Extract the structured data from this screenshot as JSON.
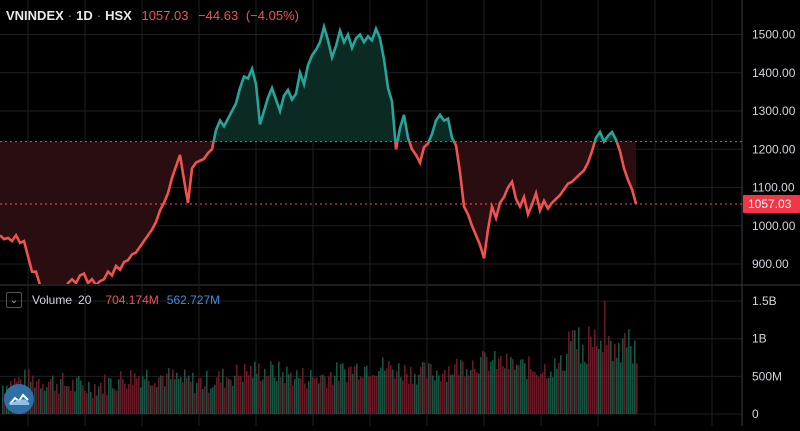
{
  "legend": {
    "symbol": "VNINDEX",
    "interval": "1D",
    "exchange": "HSX",
    "last": "1057.03",
    "change": "−44.63",
    "change_pct": "(−4.05%)"
  },
  "volume_legend": {
    "label": "Volume",
    "length": "20",
    "value": "704.174M",
    "ma": "562.727M"
  },
  "icons": {
    "logo": "tradingview-cloud-icon",
    "collapse": "chevron-down-icon"
  },
  "colors": {
    "up": "#26a69a",
    "down": "#ef5350",
    "price_label": "#f23645",
    "ma": "#3f8ede",
    "grid": "#1d1f25"
  },
  "chart_data": {
    "type": "line",
    "base_value": 1220,
    "last_price_label": "1057.03",
    "price_axis": {
      "ticks": [
        900,
        1000,
        1100,
        1200,
        1300,
        1400,
        1500
      ],
      "labels": [
        "900.00",
        "1000.00",
        "1100.00",
        "1200.00",
        "1300.00",
        "1400.00",
        "1500.00"
      ],
      "ylim": [
        850,
        1540
      ]
    },
    "price": [
      [
        0,
        975
      ],
      [
        4,
        965
      ],
      [
        8,
        968
      ],
      [
        12,
        960
      ],
      [
        16,
        975
      ],
      [
        20,
        955
      ],
      [
        24,
        960
      ],
      [
        28,
        920
      ],
      [
        32,
        880
      ],
      [
        36,
        880
      ],
      [
        40,
        845
      ],
      [
        44,
        830
      ],
      [
        48,
        820
      ],
      [
        52,
        815
      ],
      [
        56,
        825
      ],
      [
        60,
        805
      ],
      [
        64,
        810
      ],
      [
        68,
        850
      ],
      [
        72,
        860
      ],
      [
        76,
        850
      ],
      [
        80,
        870
      ],
      [
        84,
        875
      ],
      [
        88,
        850
      ],
      [
        92,
        860
      ],
      [
        96,
        845
      ],
      [
        100,
        855
      ],
      [
        104,
        860
      ],
      [
        108,
        880
      ],
      [
        112,
        870
      ],
      [
        116,
        895
      ],
      [
        120,
        885
      ],
      [
        124,
        905
      ],
      [
        128,
        910
      ],
      [
        132,
        925
      ],
      [
        136,
        930
      ],
      [
        140,
        945
      ],
      [
        144,
        960
      ],
      [
        148,
        975
      ],
      [
        152,
        990
      ],
      [
        156,
        1010
      ],
      [
        160,
        1040
      ],
      [
        164,
        1060
      ],
      [
        168,
        1085
      ],
      [
        172,
        1125
      ],
      [
        176,
        1155
      ],
      [
        180,
        1185
      ],
      [
        184,
        1120
      ],
      [
        188,
        1060
      ],
      [
        192,
        1150
      ],
      [
        196,
        1165
      ],
      [
        200,
        1170
      ],
      [
        204,
        1175
      ],
      [
        208,
        1190
      ],
      [
        212,
        1200
      ],
      [
        216,
        1250
      ],
      [
        220,
        1275
      ],
      [
        224,
        1260
      ],
      [
        228,
        1280
      ],
      [
        232,
        1300
      ],
      [
        236,
        1320
      ],
      [
        240,
        1360
      ],
      [
        244,
        1390
      ],
      [
        248,
        1385
      ],
      [
        252,
        1410
      ],
      [
        256,
        1370
      ],
      [
        260,
        1265
      ],
      [
        264,
        1300
      ],
      [
        268,
        1335
      ],
      [
        272,
        1360
      ],
      [
        276,
        1330
      ],
      [
        280,
        1300
      ],
      [
        284,
        1340
      ],
      [
        288,
        1355
      ],
      [
        292,
        1330
      ],
      [
        296,
        1345
      ],
      [
        300,
        1400
      ],
      [
        304,
        1370
      ],
      [
        308,
        1420
      ],
      [
        312,
        1445
      ],
      [
        316,
        1460
      ],
      [
        320,
        1480
      ],
      [
        324,
        1520
      ],
      [
        328,
        1485
      ],
      [
        332,
        1440
      ],
      [
        336,
        1470
      ],
      [
        340,
        1510
      ],
      [
        344,
        1480
      ],
      [
        348,
        1500
      ],
      [
        352,
        1465
      ],
      [
        356,
        1490
      ],
      [
        360,
        1500
      ],
      [
        364,
        1480
      ],
      [
        368,
        1495
      ],
      [
        372,
        1485
      ],
      [
        376,
        1515
      ],
      [
        380,
        1490
      ],
      [
        384,
        1435
      ],
      [
        388,
        1360
      ],
      [
        392,
        1325
      ],
      [
        396,
        1200
      ],
      [
        400,
        1255
      ],
      [
        404,
        1290
      ],
      [
        408,
        1230
      ],
      [
        412,
        1200
      ],
      [
        416,
        1185
      ],
      [
        420,
        1165
      ],
      [
        424,
        1205
      ],
      [
        428,
        1215
      ],
      [
        432,
        1240
      ],
      [
        436,
        1275
      ],
      [
        440,
        1290
      ],
      [
        444,
        1275
      ],
      [
        448,
        1280
      ],
      [
        452,
        1230
      ],
      [
        456,
        1210
      ],
      [
        460,
        1140
      ],
      [
        464,
        1050
      ],
      [
        468,
        1030
      ],
      [
        472,
        1000
      ],
      [
        476,
        975
      ],
      [
        480,
        950
      ],
      [
        484,
        915
      ],
      [
        488,
        990
      ],
      [
        492,
        1050
      ],
      [
        496,
        1020
      ],
      [
        500,
        1060
      ],
      [
        504,
        1075
      ],
      [
        508,
        1100
      ],
      [
        512,
        1115
      ],
      [
        516,
        1070
      ],
      [
        520,
        1050
      ],
      [
        524,
        1075
      ],
      [
        528,
        1030
      ],
      [
        532,
        1055
      ],
      [
        536,
        1085
      ],
      [
        540,
        1040
      ],
      [
        544,
        1065
      ],
      [
        548,
        1045
      ],
      [
        552,
        1060
      ],
      [
        556,
        1070
      ],
      [
        560,
        1080
      ],
      [
        564,
        1095
      ],
      [
        568,
        1110
      ],
      [
        572,
        1115
      ],
      [
        576,
        1125
      ],
      [
        580,
        1135
      ],
      [
        584,
        1145
      ],
      [
        588,
        1165
      ],
      [
        592,
        1195
      ],
      [
        596,
        1230
      ],
      [
        600,
        1245
      ],
      [
        604,
        1220
      ],
      [
        608,
        1235
      ],
      [
        612,
        1245
      ],
      [
        616,
        1225
      ],
      [
        620,
        1195
      ],
      [
        624,
        1150
      ],
      [
        628,
        1120
      ],
      [
        632,
        1095
      ],
      [
        636,
        1057
      ]
    ],
    "volume_axis": {
      "ticks": [
        0,
        500,
        1000,
        1500
      ],
      "labels": [
        "0",
        "500M",
        "1B",
        "1.5B"
      ],
      "ylim": [
        0,
        1650
      ]
    },
    "volume_unit": "M"
  }
}
